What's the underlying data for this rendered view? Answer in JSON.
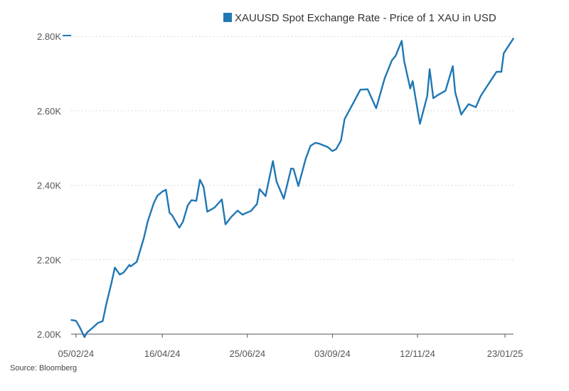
{
  "chart_data": {
    "type": "line",
    "title": "",
    "xlabel": "",
    "ylabel": "",
    "legend": {
      "position": "top-right"
    },
    "grid": "horizontal",
    "colors": {
      "series": "#1f77b4"
    },
    "source": "Source: Bloomberg",
    "y_ticks": [
      {
        "value": 2000,
        "label": "2.00K"
      },
      {
        "value": 2200,
        "label": "2.20K"
      },
      {
        "value": 2400,
        "label": "2.40K"
      },
      {
        "value": 2600,
        "label": "2.60K"
      },
      {
        "value": 2800,
        "label": "2.80K"
      }
    ],
    "x_ticks": [
      "05/02/24",
      "16/04/24",
      "25/06/24",
      "03/09/24",
      "12/11/24",
      "23/01/25"
    ],
    "ylim": [
      2000,
      2810
    ],
    "series": [
      {
        "name": "XAUUSD Spot Exchange Rate - Price of 1 XAU in USD",
        "x": [
          "01/02/24",
          "05/02/24",
          "08/02/24",
          "12/02/24",
          "14/02/24",
          "19/02/24",
          "23/02/24",
          "27/02/24",
          "01/03/24",
          "05/03/24",
          "08/03/24",
          "12/03/24",
          "15/03/24",
          "20/03/24",
          "21/03/24",
          "26/03/24",
          "01/04/24",
          "04/04/24",
          "09/04/24",
          "12/04/24",
          "16/04/24",
          "19/04/24",
          "22/04/24",
          "24/04/24",
          "30/04/24",
          "03/05/24",
          "07/05/24",
          "10/05/24",
          "14/05/24",
          "17/05/24",
          "20/05/24",
          "23/05/24",
          "29/05/24",
          "04/06/24",
          "07/06/24",
          "12/06/24",
          "17/06/24",
          "21/06/24",
          "25/06/24",
          "28/06/24",
          "03/07/24",
          "05/07/24",
          "10/07/24",
          "16/07/24",
          "19/07/24",
          "25/07/24",
          "31/07/24",
          "02/08/24",
          "06/08/24",
          "12/08/24",
          "16/08/24",
          "20/08/24",
          "23/08/24",
          "30/08/24",
          "03/09/24",
          "06/09/24",
          "10/09/24",
          "13/09/24",
          "20/09/24",
          "26/09/24",
          "02/10/24",
          "09/10/24",
          "16/10/24",
          "22/10/24",
          "25/10/24",
          "30/10/24",
          "01/11/24",
          "06/11/24",
          "08/11/24",
          "14/11/24",
          "20/11/24",
          "22/11/24",
          "25/11/24",
          "29/11/24",
          "05/12/24",
          "11/12/24",
          "13/12/24",
          "18/12/24",
          "19/12/24",
          "24/12/24",
          "30/12/24",
          "03/01/25",
          "08/01/25",
          "13/01/25",
          "16/01/25",
          "20/01/25",
          "22/01/25",
          "27/01/25",
          "30/01/25"
        ],
        "values": [
          2038,
          2036,
          2019,
          1992,
          2004,
          2018,
          2030,
          2035,
          2082,
          2135,
          2179,
          2160,
          2165,
          2186,
          2182,
          2194,
          2260,
          2303,
          2352,
          2372,
          2383,
          2388,
          2326,
          2320,
          2286,
          2302,
          2346,
          2360,
          2358,
          2415,
          2395,
          2329,
          2340,
          2362,
          2295,
          2316,
          2332,
          2321,
          2327,
          2331,
          2350,
          2390,
          2371,
          2465,
          2410,
          2364,
          2445,
          2444,
          2398,
          2471,
          2506,
          2514,
          2512,
          2503,
          2492,
          2497,
          2520,
          2578,
          2620,
          2657,
          2658,
          2607,
          2688,
          2736,
          2748,
          2788,
          2734,
          2660,
          2680,
          2565,
          2640,
          2712,
          2634,
          2643,
          2654,
          2720,
          2650,
          2590,
          2595,
          2618,
          2610,
          2640,
          2665,
          2690,
          2705,
          2705,
          2755,
          2780,
          2795
        ]
      }
    ]
  }
}
